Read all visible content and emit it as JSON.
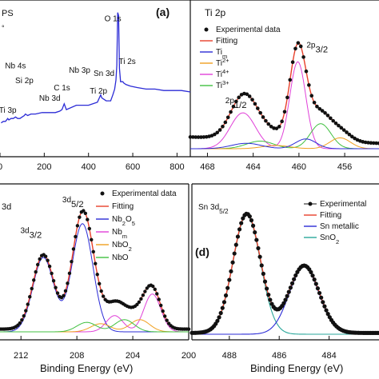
{
  "chart_data": [
    {
      "panel": "(a)",
      "type": "line",
      "title_fragment": "PS",
      "title_fragment2": "°",
      "xlabel": "",
      "xlim": [
        0,
        860
      ],
      "ylim": [
        0,
        100
      ],
      "ticks": [
        "800",
        "600",
        "400",
        "200",
        "0"
      ],
      "tick_values": [
        800,
        600,
        400,
        200,
        0
      ],
      "color": "#2b2bd6",
      "series": [
        {
          "x": [
            860,
            820,
            780,
            740,
            700,
            660,
            620,
            590,
            570,
            560,
            555,
            545,
            540,
            536,
            532,
            528,
            524,
            518,
            510,
            500,
            480,
            460,
            455,
            440,
            420,
            400,
            380,
            360,
            345,
            300,
            290,
            280,
            270,
            250,
            230,
            220,
            210,
            200,
            190,
            160,
            150,
            140,
            125,
            115,
            110,
            100,
            90,
            80,
            70,
            60,
            50,
            40,
            35,
            25,
            15,
            5
          ],
          "y": [
            44,
            45,
            45,
            45,
            46,
            46,
            47,
            48,
            49,
            50,
            51,
            51,
            60,
            96,
            98,
            62,
            52,
            46,
            42,
            38,
            38,
            40,
            42,
            37,
            36,
            35,
            35,
            35,
            35,
            32,
            36,
            32,
            31,
            30,
            30,
            30,
            30,
            30,
            30,
            29,
            29,
            29,
            28,
            29,
            28,
            27,
            26,
            26,
            27,
            26,
            26,
            25,
            26,
            24,
            24,
            23
          ]
        }
      ],
      "labels": [
        {
          "text": "O 1s",
          "x": 510,
          "y": 92
        },
        {
          "text": "Ti 2s",
          "x": 575,
          "y": 63
        },
        {
          "text": "Sn 3d",
          "x": 470,
          "y": 55
        },
        {
          "text": "Nb 3p",
          "x": 360,
          "y": 57
        },
        {
          "text": "Ti 2p",
          "x": 445,
          "y": 43
        },
        {
          "text": "C 1s",
          "x": 280,
          "y": 45
        },
        {
          "text": "Nb 3d",
          "x": 225,
          "y": 38
        },
        {
          "text": "Si 2p",
          "x": 110,
          "y": 50
        },
        {
          "text": "Nb 4s",
          "x": 70,
          "y": 60
        },
        {
          "text": "Ti 3p",
          "x": 35,
          "y": 30
        }
      ]
    },
    {
      "panel": "Ti 2p",
      "type": "line",
      "xlim": [
        469.5,
        453
      ],
      "ylim": [
        0,
        100
      ],
      "ticks": [
        "468",
        "464",
        "460",
        "456"
      ],
      "tick_values": [
        468,
        464,
        460,
        456
      ],
      "peak_labels": [
        {
          "main": "2p",
          "sub": "3/2",
          "x": 457.8,
          "y": 93
        },
        {
          "main": "2p",
          "sub": "1/2",
          "x": 464.9,
          "y": 42
        }
      ],
      "legend": [
        "Experimental data",
        "Fitting",
        "Ti",
        "Ti",
        "Ti",
        "Ti"
      ],
      "legend_sup": [
        "",
        "",
        "m",
        "2+",
        "4+",
        "3+"
      ],
      "legend_colors": [
        "#111111",
        "#e8402a",
        "#2b2bd6",
        "#f0a020",
        "#e040d8",
        "#40c040"
      ],
      "series": [
        {
          "name": "Experimental data",
          "x": [
            469,
            468.5,
            468,
            467.5,
            467,
            466.5,
            466,
            465.5,
            465,
            464.5,
            464,
            463.5,
            463,
            462.5,
            462,
            461.5,
            461,
            460.5,
            460.2,
            460,
            459.8,
            459.5,
            459,
            458.5,
            458,
            457.5,
            457,
            456.5,
            456,
            455.5,
            455,
            454.5,
            454,
            453.5
          ],
          "y": [
            6,
            7,
            9,
            12,
            17,
            24,
            32,
            38,
            40,
            38,
            33,
            26,
            22,
            24,
            33,
            52,
            72,
            86,
            90,
            88,
            82,
            70,
            50,
            33,
            26,
            22,
            18,
            13,
            10,
            8,
            7,
            6,
            5,
            5
          ]
        },
        {
          "name": "Ti4+",
          "color": "#e040d8",
          "peaks": [
            {
              "c": 460.1,
              "w": 0.7,
              "h": 80
            },
            {
              "c": 464.9,
              "w": 1.1,
              "h": 33
            }
          ]
        },
        {
          "name": "Ti3+",
          "color": "#40c040",
          "peaks": [
            {
              "c": 458.1,
              "w": 0.9,
              "h": 23
            },
            {
              "c": 463.4,
              "w": 1.2,
              "h": 7
            }
          ]
        },
        {
          "name": "Ti2+",
          "color": "#f0a020",
          "peaks": [
            {
              "c": 456.4,
              "w": 0.9,
              "h": 10
            },
            {
              "c": 462.0,
              "w": 1.2,
              "h": 3
            }
          ]
        },
        {
          "name": "Tim",
          "color": "#2b2bd6",
          "peaks": [
            {
              "c": 459.4,
              "w": 0.9,
              "h": 9
            },
            {
              "c": 464.6,
              "w": 1.3,
              "h": 5
            }
          ]
        }
      ]
    },
    {
      "panel": "Nb 3d",
      "type": "line",
      "title_fragment": "3d",
      "xlim": [
        213.5,
        200
      ],
      "ylim": [
        0,
        100
      ],
      "ticks": [
        "212",
        "208",
        "204",
        "200"
      ],
      "tick_values": [
        212,
        208,
        204,
        200
      ],
      "peak_labels": [
        {
          "main": "3d",
          "sub": "5/2",
          "x": 207.9,
          "y": 96
        },
        {
          "main": "3d",
          "sub": "3/2",
          "x": 210.9,
          "y": 73
        }
      ],
      "legend": [
        "Experimental data",
        "Fitting",
        "Nb",
        "Nb",
        "Nb",
        "NbO"
      ],
      "legend_sub": [
        "",
        "",
        "2",
        "",
        "",
        ""
      ],
      "legend_parts": [
        [
          {
            "t": "Experimental data"
          }
        ],
        [
          {
            "t": "Fitting"
          }
        ],
        [
          {
            "t": "Nb"
          },
          {
            "t": "2",
            "s": "sub"
          },
          {
            "t": "O"
          },
          {
            "t": "5",
            "s": "sub"
          }
        ],
        [
          {
            "t": "Nb"
          },
          {
            "t": "m",
            "s": "sub"
          }
        ],
        [
          {
            "t": "NbO"
          },
          {
            "t": "2",
            "s": "sub"
          }
        ],
        [
          {
            "t": "NbO"
          }
        ]
      ],
      "legend_colors": [
        "#111111",
        "#e8402a",
        "#2b2bd6",
        "#e040d8",
        "#f0a020",
        "#40c040"
      ],
      "series": [
        {
          "name": "Nb2O5",
          "color": "#2b2bd6",
          "peaks": [
            {
              "c": 207.6,
              "w": 0.75,
              "h": 80
            },
            {
              "c": 210.4,
              "w": 0.75,
              "h": 55
            }
          ]
        },
        {
          "name": "Nbm",
          "color": "#e040d8",
          "peaks": [
            {
              "c": 202.6,
              "w": 0.6,
              "h": 28
            },
            {
              "c": 205.3,
              "w": 0.6,
              "h": 12
            }
          ]
        },
        {
          "name": "NbO2",
          "color": "#f0a020",
          "peaks": [
            {
              "c": 203.5,
              "w": 0.7,
              "h": 9
            },
            {
              "c": 206.3,
              "w": 0.7,
              "h": 6
            }
          ]
        },
        {
          "name": "NbO",
          "color": "#40c040",
          "peaks": [
            {
              "c": 204.6,
              "w": 0.7,
              "h": 9
            },
            {
              "c": 207.3,
              "w": 0.7,
              "h": 7
            }
          ]
        }
      ]
    },
    {
      "panel": "(d)",
      "type": "line",
      "title_main": "Sn 3d",
      "title_sub": "5/2",
      "xlim": [
        489.5,
        482
      ],
      "ylim": [
        0,
        100
      ],
      "ticks": [
        "488",
        "486",
        "484"
      ],
      "tick_values": [
        488,
        486,
        484
      ],
      "legend": [
        "Experimental",
        "Fitting",
        "Sn metallic",
        "SnO"
      ],
      "legend_parts": [
        [
          {
            "t": "Experimental"
          }
        ],
        [
          {
            "t": "Fitting"
          }
        ],
        [
          {
            "t": "Sn metallic"
          }
        ],
        [
          {
            "t": "SnO"
          },
          {
            "t": "2",
            "s": "sub"
          }
        ]
      ],
      "legend_colors": [
        "#111111",
        "#e8402a",
        "#2b2bd6",
        "#2aa79b"
      ],
      "series": [
        {
          "name": "SnO2",
          "color": "#2aa79b",
          "peaks": [
            {
              "c": 487.3,
              "w": 0.55,
              "h": 92
            }
          ]
        },
        {
          "name": "Sn metallic",
          "color": "#2b2bd6",
          "peaks": [
            {
              "c": 485.0,
              "w": 0.6,
              "h": 52
            }
          ]
        }
      ]
    }
  ],
  "panel_labels": {
    "a": "(a)",
    "d": "(d)",
    "ti": "Ti 2p",
    "nb_frag": "3d"
  },
  "axis_titles": {
    "left": "Binding Energy (eV)",
    "right": "Binding Energy (eV)"
  }
}
